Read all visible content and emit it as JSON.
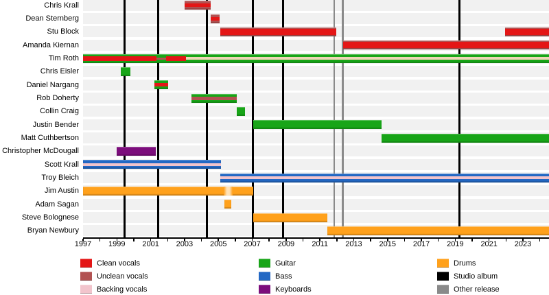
{
  "chart_data": {
    "type": "timeline",
    "description": "Band members timeline chart",
    "x_axis": {
      "unit": "year",
      "range": [
        1997,
        2024.6
      ],
      "tick_labels": [
        "1997",
        "1999",
        "2001",
        "2003",
        "2005",
        "2007",
        "2009",
        "2011",
        "2013",
        "2015",
        "2017",
        "2019",
        "2021",
        "2023"
      ],
      "minor_tick_every_years": 1,
      "grid": false
    },
    "colors": {
      "clean": "#e41616",
      "unclean": "#b25252",
      "backing": "#f2c4cc",
      "backing_tan": "#eed7b6",
      "guitar": "#18a518",
      "bass": "#2368c4",
      "keyboards": "#7c0d7c",
      "drums": "#ffa11c",
      "drums_fade": "#ffe2b8",
      "studio_album": "#000000",
      "other_release": "#8a8a8a"
    },
    "members": [
      {
        "label": "Chris Krall",
        "bars": [
          {
            "c": "unclean",
            "f": 2003.0,
            "t": 2004.55
          }
        ],
        "stripes": [
          {
            "c": "clean",
            "f": 2003.0,
            "t": 2004.55,
            "h": 5
          }
        ]
      },
      {
        "label": "Dean Sternberg",
        "bars": [
          {
            "c": "unclean",
            "f": 2004.55,
            "t": 2005.07
          }
        ],
        "stripes": [
          {
            "c": "clean",
            "f": 2004.55,
            "t": 2005.07,
            "h": 5
          }
        ]
      },
      {
        "label": "Stu Block",
        "bars": [
          {
            "c": "unclean",
            "f": 2005.11,
            "t": 2011.97
          },
          {
            "c": "unclean",
            "f": 2021.94,
            "t": 2024.6
          }
        ],
        "stripes": [
          {
            "c": "clean",
            "f": 2005.11,
            "t": 2011.97,
            "h": 9
          },
          {
            "c": "clean",
            "f": 2021.94,
            "t": 2024.6,
            "h": 9
          }
        ]
      },
      {
        "label": "Amanda Kiernan",
        "bars": [
          {
            "c": "unclean",
            "f": 2012.37,
            "t": 2024.6
          }
        ],
        "stripes": [
          {
            "c": "clean",
            "f": 2012.37,
            "t": 2024.6,
            "h": 9
          }
        ]
      },
      {
        "label": "Tim Roth",
        "bars": [
          {
            "c": "guitar",
            "f": 1997.0,
            "t": 2024.6
          }
        ],
        "stripes": [
          {
            "c": "clean",
            "f": 1997.0,
            "t": 2001.34,
            "h": 7
          },
          {
            "c": "unclean",
            "f": 2001.34,
            "t": 2001.91,
            "h": 3
          },
          {
            "c": "clean",
            "f": 2001.91,
            "t": 2003.08,
            "h": 7
          },
          {
            "c": "backing_tan",
            "f": 2003.08,
            "t": 2024.6,
            "h": 4
          }
        ]
      },
      {
        "label": "Chris Eisler",
        "bars": [
          {
            "c": "guitar",
            "f": 1999.23,
            "t": 1999.8
          }
        ],
        "stripes": []
      },
      {
        "label": "Daniel Nargang",
        "bars": [
          {
            "c": "guitar",
            "f": 2001.22,
            "t": 2002.03
          }
        ],
        "stripes": [
          {
            "c": "clean",
            "f": 2001.22,
            "t": 2002.03,
            "h": 5
          }
        ]
      },
      {
        "label": "Rob Doherty",
        "bars": [
          {
            "c": "guitar",
            "f": 2003.41,
            "t": 2006.08
          }
        ],
        "stripes": [
          {
            "c": "unclean",
            "f": 2003.41,
            "t": 2006.08,
            "h": 5
          }
        ]
      },
      {
        "label": "Collin Craig",
        "bars": [
          {
            "c": "guitar",
            "f": 2006.08,
            "t": 2006.57
          }
        ],
        "stripes": []
      },
      {
        "label": "Justin Bender",
        "bars": [
          {
            "c": "guitar",
            "f": 2007.06,
            "t": 2014.64
          }
        ],
        "stripes": []
      },
      {
        "label": "Matt Cuthbertson",
        "bars": [
          {
            "c": "guitar",
            "f": 2014.64,
            "t": 2024.6
          }
        ],
        "stripes": []
      },
      {
        "label": "Christopher McDougall",
        "bars": [
          {
            "c": "keyboards",
            "f": 1998.99,
            "t": 2001.3
          }
        ],
        "stripes": []
      },
      {
        "label": "Scott Krall",
        "bars": [
          {
            "c": "bass",
            "f": 1997.0,
            "t": 2005.15
          }
        ],
        "stripes": [
          {
            "c": "backing",
            "f": 1997.0,
            "t": 2005.15,
            "h": 4
          }
        ]
      },
      {
        "label": "Troy Bleich",
        "bars": [
          {
            "c": "bass",
            "f": 2005.11,
            "t": 2024.6
          }
        ],
        "stripes": [
          {
            "c": "backing",
            "f": 2005.11,
            "t": 2024.6,
            "h": 4
          }
        ]
      },
      {
        "label": "Jim Austin",
        "bars": [
          {
            "c": "drums",
            "f": 1997.0,
            "t": 2007.06
          }
        ],
        "stripes": [
          {
            "c": "drums_fade",
            "f": 2005.3,
            "t": 2005.85,
            "h": 13
          }
        ]
      },
      {
        "label": "Adam Sagan",
        "bars": [
          {
            "c": "drums",
            "f": 2005.36,
            "t": 2005.76
          }
        ],
        "stripes": []
      },
      {
        "label": "Steve Bolognese",
        "bars": [
          {
            "c": "drums",
            "f": 2007.06,
            "t": 2011.44
          }
        ],
        "stripes": []
      },
      {
        "label": "Bryan Newbury",
        "bars": [
          {
            "c": "drums",
            "f": 2011.44,
            "t": 2024.6
          }
        ],
        "stripes": []
      }
    ],
    "events": [
      {
        "t": "studio_album",
        "y": 1999.47
      },
      {
        "t": "studio_album",
        "y": 2001.46
      },
      {
        "t": "studio_album",
        "y": 2004.32
      },
      {
        "t": "studio_album",
        "y": 2007.02
      },
      {
        "t": "studio_album",
        "y": 2008.84
      },
      {
        "t": "studio_album",
        "y": 2019.23
      },
      {
        "t": "other_release",
        "y": 2011.84
      },
      {
        "t": "other_release",
        "y": 2012.35
      }
    ],
    "legend": {
      "position": "bottom",
      "columns": [
        [
          {
            "label": "Clean vocals",
            "color": "clean"
          },
          {
            "label": "Unclean vocals",
            "color": "unclean"
          },
          {
            "label": "Backing vocals",
            "color": "backing"
          }
        ],
        [
          {
            "label": "Guitar",
            "color": "guitar"
          },
          {
            "label": "Bass",
            "color": "bass"
          },
          {
            "label": "Keyboards",
            "color": "keyboards"
          }
        ],
        [
          {
            "label": "Drums",
            "color": "drums"
          },
          {
            "label": "Studio album",
            "color": "studio_album"
          },
          {
            "label": "Other release",
            "color": "other_release"
          }
        ]
      ]
    }
  }
}
